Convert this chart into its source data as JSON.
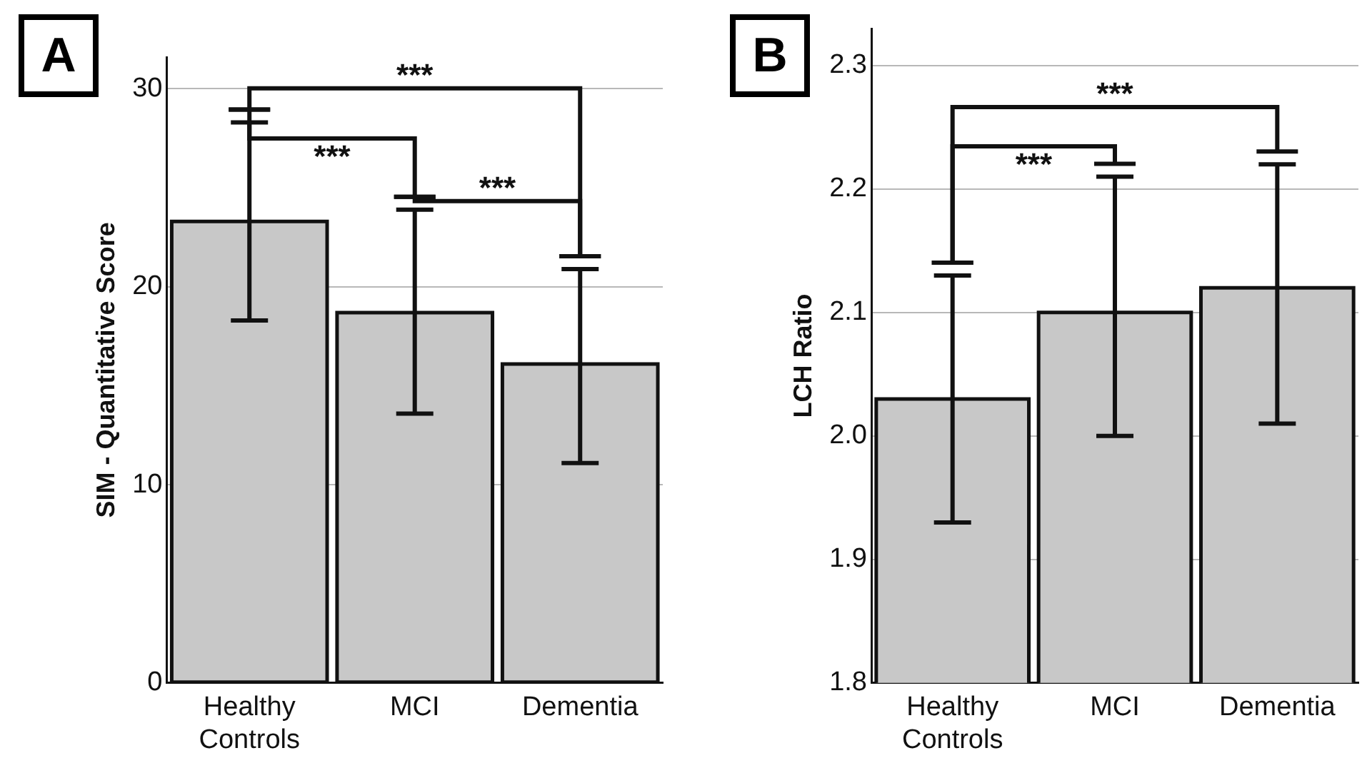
{
  "chart_data": [
    {
      "type": "bar",
      "title": "A",
      "ylabel": "SIM - Quantitative Score",
      "categories": [
        "Healthy Controls",
        "MCI",
        "Dementia"
      ],
      "values": [
        23.3,
        18.7,
        16.1
      ],
      "errors": [
        [
          18.3,
          28.3
        ],
        [
          13.6,
          23.9
        ],
        [
          11.1,
          20.9
        ]
      ],
      "color": "#c8c8c8",
      "ylim": [
        0,
        31.6
      ],
      "yticks": [
        0,
        10,
        20,
        30
      ],
      "grid": "y",
      "annotations": [
        "***",
        "***",
        "***"
      ]
    },
    {
      "type": "bar",
      "title": "B",
      "ylabel": "LCH Ratio",
      "categories": [
        "Healthy Controls",
        "MCI",
        "Dementia"
      ],
      "values": [
        2.03,
        2.1,
        2.12
      ],
      "errors": [
        [
          1.93,
          2.13
        ],
        [
          2.0,
          2.21
        ],
        [
          2.01,
          2.22
        ]
      ],
      "color": "#c8c8c8",
      "ylim": [
        1.8,
        2.33
      ],
      "yticks": [
        {
          "value": 1.8,
          "label": "1.8"
        },
        {
          "value": 1.9,
          "label": "1.9"
        },
        {
          "value": 2.0,
          "label": "2.0"
        },
        {
          "value": 2.1,
          "label": "2.1"
        },
        {
          "value": 2.2,
          "label": "2.2"
        },
        {
          "value": 2.3,
          "label": "2.3"
        }
      ],
      "grid": "y",
      "annotations": [
        "***",
        "***"
      ]
    }
  ]
}
